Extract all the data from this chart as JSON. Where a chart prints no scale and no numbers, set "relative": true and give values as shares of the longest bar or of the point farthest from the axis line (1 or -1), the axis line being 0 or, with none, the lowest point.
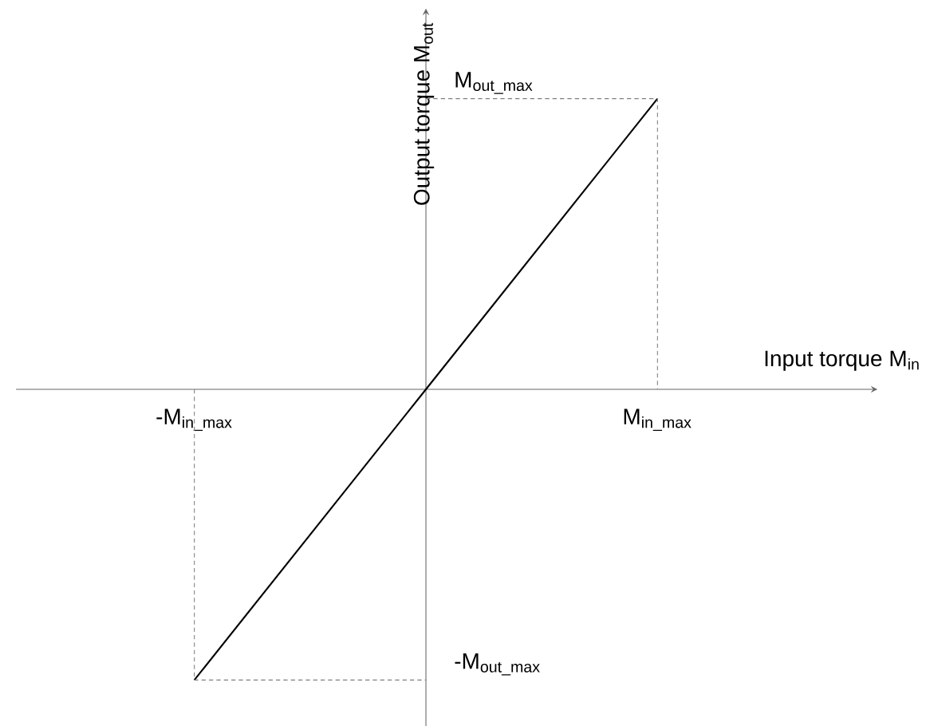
{
  "chart_data": {
    "type": "line",
    "relative": true,
    "xlabel": "Input torque M$_{in}$",
    "ylabel": "Output torque M$_{out}$",
    "categories": [
      "-M$_{in_max}$",
      null,
      "M$_{in_max}$"
    ],
    "series": [
      {
        "color": "#000000",
        "values": [
          -1,
          0,
          1
        ]
      },
      {
        "type": "step",
        "color": "#808080",
        "line_style": "dashed",
        "values": [
          null,
          1,
          0
        ]
      },
      {
        "type": "step",
        "color": "#808080",
        "line_style": "dashed",
        "values": [
          0,
          -1,
          null
        ]
      }
    ],
    "annotations": [
      "M$_{out_max}$",
      "-M$_{out_max}$"
    ]
  }
}
